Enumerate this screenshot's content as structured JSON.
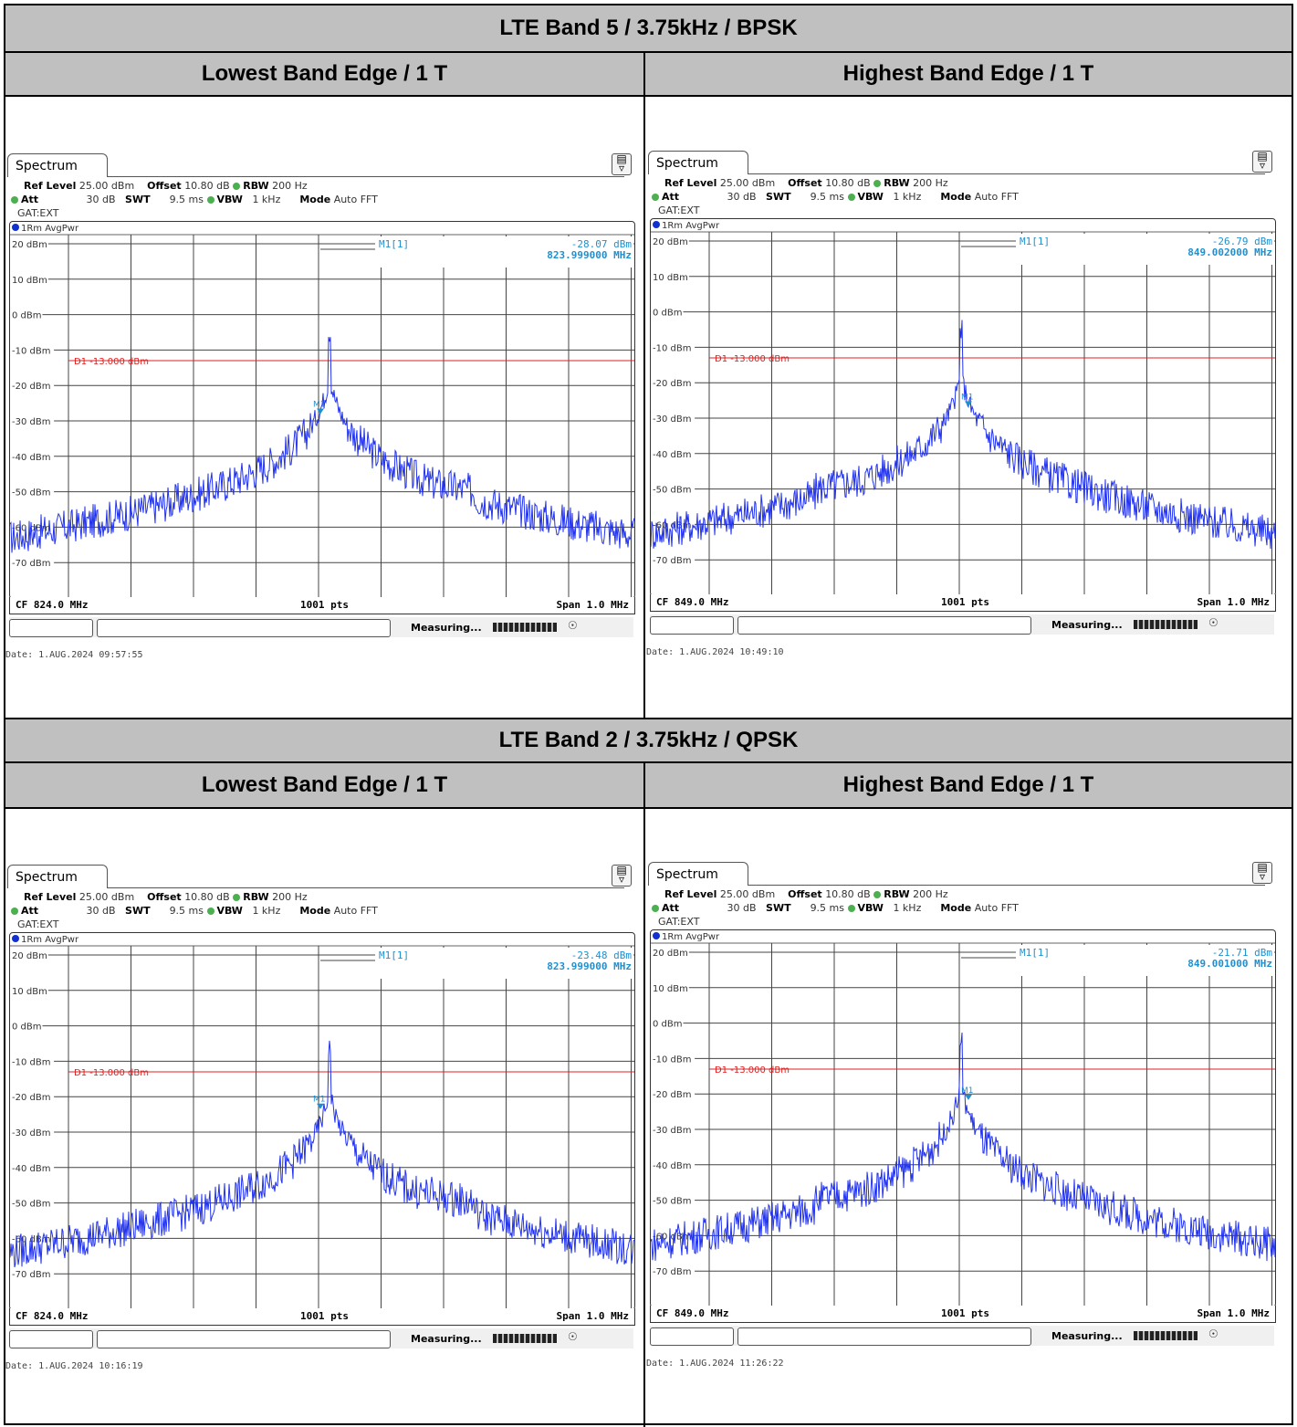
{
  "sections": [
    {
      "title": "LTE Band 5 / 3.75kHz / BPSK",
      "columns": [
        "Lowest Band Edge / 1 T",
        "Highest Band Edge / 1 T"
      ]
    },
    {
      "title": "LTE Band 2 / 3.75kHz / QPSK",
      "columns": [
        "Lowest Band Edge / 1 T",
        "Highest Band Edge / 1 T"
      ]
    }
  ],
  "analyzer": {
    "tab": "Spectrum",
    "ref_level_label": "Ref Level",
    "ref_level": "25.00 dBm",
    "offset_label": "Offset",
    "offset": "10.80 dB",
    "rbw_label": "RBW",
    "rbw": "200 Hz",
    "att_label": "Att",
    "att": "30 dB",
    "swt_label": "SWT",
    "swt": "9.5 ms",
    "vbw_label": "VBW",
    "vbw": "1 kHz",
    "mode_label": "Mode",
    "mode": "Auto FFT",
    "gate": "GAT:EXT",
    "trace": "1Rm AvgPwr",
    "marker_label": "M1[1]",
    "limit_label": "D1 -13.000 dBm",
    "pts": "1001 pts",
    "span": "Span 1.0 MHz",
    "measuring": "Measuring...",
    "y_ticks": [
      "20 dBm",
      "10 dBm",
      "0 dBm",
      "-10 dBm",
      "-20 dBm",
      "-30 dBm",
      "-40 dBm",
      "-50 dBm",
      "-60 dBm",
      "-70 dBm"
    ],
    "colors": {
      "trace": "#2233ee",
      "marker": "#1e90d0",
      "limit": "#e02020"
    }
  },
  "panels": [
    {
      "marker_value": "-28.07 dBm",
      "marker_freq": "823.999000 MHz",
      "cf": "CF 824.0 MHz",
      "date": "Date: 1.AUG.2024  09:57:55"
    },
    {
      "marker_value": "-26.79 dBm",
      "marker_freq": "849.002000 MHz",
      "cf": "CF 849.0 MHz",
      "date": "Date: 1.AUG.2024  10:49:10"
    },
    {
      "marker_value": "-23.48 dBm",
      "marker_freq": "823.999000 MHz",
      "cf": "CF 824.0 MHz",
      "date": "Date: 1.AUG.2024  10:16:19"
    },
    {
      "marker_value": "-21.71 dBm",
      "marker_freq": "849.001000 MHz",
      "cf": "CF 849.0 MHz",
      "date": "Date: 1.AUG.2024  11:26:22"
    }
  ]
}
